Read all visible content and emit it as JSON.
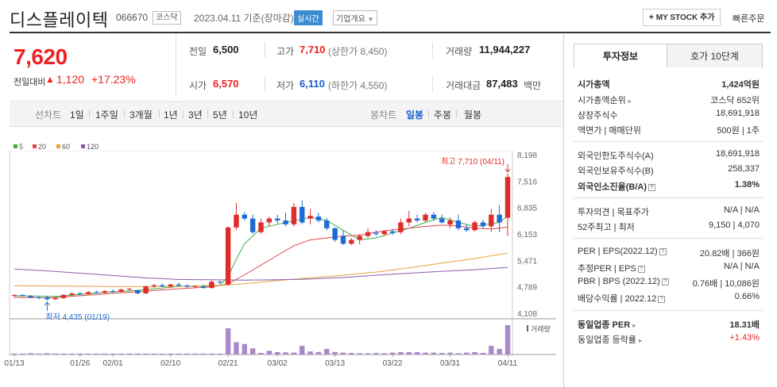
{
  "header": {
    "name": "디스플레이텍",
    "code": "066670",
    "market": "코스닥",
    "date": "2023.04.11  기준(장마감)",
    "realtime": "실시간",
    "company_info": "기업개요",
    "mystock_button": "MY STOCK 추가",
    "quick_order": "빠른주문"
  },
  "price": {
    "current": "7,620",
    "change_label": "전일대비",
    "change_value": "1,120",
    "change_pct": "+17.23%"
  },
  "stats": {
    "prev_label": "전일",
    "prev_value": "6,500",
    "high_label": "고가",
    "high_value": "7,710",
    "upper_limit": "(상한가 8,450)",
    "volume_label": "거래량",
    "volume_value": "11,944,227",
    "open_label": "시가",
    "open_value": "6,570",
    "low_label": "저가",
    "low_value": "6,110",
    "lower_limit": "(하한가 4,550)",
    "amount_label": "거래대금",
    "amount_value": "87,483",
    "amount_unit": "백만"
  },
  "period_bar": {
    "line_label": "선차트",
    "periods": [
      "1일",
      "1주일",
      "3개월",
      "1년",
      "3년",
      "5년",
      "10년"
    ],
    "candle_label": "봉차트",
    "candle_periods": [
      "일봉",
      "주봉",
      "월봉"
    ],
    "active_candle": "일봉"
  },
  "legend": [
    {
      "name": "5",
      "color": "#3cb043"
    },
    {
      "name": "20",
      "color": "#e04848"
    },
    {
      "name": "60",
      "color": "#e8a23c"
    },
    {
      "name": "120",
      "color": "#8a5bb0"
    }
  ],
  "chart_data": {
    "type": "candlestick",
    "y_ticks": [
      "8,198",
      "7,516",
      "6,835",
      "6,153",
      "5,471",
      "4,789",
      "4,108"
    ],
    "ylim": [
      4108,
      8198
    ],
    "x_ticks": [
      {
        "label": "01/13",
        "i": 0
      },
      {
        "label": "01/26",
        "i": 8
      },
      {
        "label": "02/01",
        "i": 12
      },
      {
        "label": "02/10",
        "i": 19
      },
      {
        "label": "02/21",
        "i": 26
      },
      {
        "label": "03/02",
        "i": 32
      },
      {
        "label": "03/13",
        "i": 39
      },
      {
        "label": "03/22",
        "i": 46
      },
      {
        "label": "03/31",
        "i": 53
      },
      {
        "label": "04/11",
        "i": 60
      }
    ],
    "max_annotation": "최고 7,710 (04/11)",
    "min_annotation": "최저 4,435 (01/19)",
    "volume_label": "거래량",
    "candles": [
      [
        4560,
        4600,
        4520,
        4580
      ],
      [
        4580,
        4600,
        4540,
        4560
      ],
      [
        4560,
        4580,
        4500,
        4520
      ],
      [
        4520,
        4560,
        4470,
        4500
      ],
      [
        4520,
        4560,
        4435,
        4470
      ],
      [
        4470,
        4520,
        4450,
        4500
      ],
      [
        4500,
        4600,
        4480,
        4580
      ],
      [
        4580,
        4640,
        4560,
        4620
      ],
      [
        4620,
        4660,
        4580,
        4600
      ],
      [
        4600,
        4680,
        4590,
        4650
      ],
      [
        4650,
        4690,
        4620,
        4640
      ],
      [
        4640,
        4700,
        4610,
        4680
      ],
      [
        4680,
        4720,
        4640,
        4660
      ],
      [
        4660,
        4740,
        4650,
        4720
      ],
      [
        4720,
        4760,
        4690,
        4740
      ],
      [
        4700,
        4720,
        4600,
        4620
      ],
      [
        4620,
        4820,
        4600,
        4800
      ],
      [
        4800,
        4860,
        4760,
        4830
      ],
      [
        4830,
        4880,
        4780,
        4800
      ],
      [
        4800,
        4860,
        4770,
        4850
      ],
      [
        4850,
        4900,
        4800,
        4820
      ],
      [
        4820,
        4860,
        4770,
        4790
      ],
      [
        4790,
        4830,
        4750,
        4810
      ],
      [
        4800,
        4840,
        4740,
        4760
      ],
      [
        4760,
        4960,
        4740,
        4920
      ],
      [
        4920,
        4950,
        4860,
        4900
      ],
      [
        4850,
        6350,
        4820,
        6320
      ],
      [
        6320,
        6950,
        6250,
        6650
      ],
      [
        6650,
        6720,
        6500,
        6550
      ],
      [
        6550,
        6650,
        6150,
        6200
      ],
      [
        6200,
        6550,
        6150,
        6450
      ],
      [
        6450,
        6600,
        6350,
        6550
      ],
      [
        6550,
        6650,
        6420,
        6500
      ],
      [
        6500,
        6700,
        6350,
        6400
      ],
      [
        6400,
        6950,
        6350,
        6850
      ],
      [
        6850,
        7020,
        6400,
        6450
      ],
      [
        6550,
        6800,
        6400,
        6620
      ],
      [
        6600,
        6700,
        6450,
        6500
      ],
      [
        6500,
        6560,
        6250,
        6300
      ],
      [
        6300,
        6320,
        5950,
        6000
      ],
      [
        6100,
        6250,
        5870,
        5900
      ],
      [
        5900,
        6050,
        5860,
        6000
      ],
      [
        6000,
        6150,
        5880,
        6100
      ],
      [
        6100,
        6300,
        6050,
        6200
      ],
      [
        6180,
        6250,
        6100,
        6150
      ],
      [
        6150,
        6260,
        6100,
        6220
      ],
      [
        6220,
        6280,
        6130,
        6180
      ],
      [
        6200,
        6550,
        6150,
        6450
      ],
      [
        6450,
        6750,
        6350,
        6550
      ],
      [
        6550,
        6650,
        6450,
        6500
      ],
      [
        6500,
        6700,
        6450,
        6650
      ],
      [
        6650,
        6720,
        6500,
        6550
      ],
      [
        6550,
        6650,
        6420,
        6450
      ],
      [
        6400,
        6580,
        6300,
        6500
      ],
      [
        6500,
        6650,
        6250,
        6300
      ],
      [
        6300,
        6400,
        6200,
        6250
      ],
      [
        6250,
        6500,
        6220,
        6450
      ],
      [
        6450,
        6520,
        6300,
        6350
      ],
      [
        6350,
        6800,
        6200,
        6650
      ],
      [
        6650,
        6900,
        6200,
        6450
      ],
      [
        6570,
        7710,
        6110,
        7620
      ]
    ],
    "ma": [
      {
        "name": "5",
        "color": "#3cb043",
        "points": [
          [
            0,
            4560
          ],
          [
            5,
            4540
          ],
          [
            10,
            4630
          ],
          [
            15,
            4700
          ],
          [
            20,
            4800
          ],
          [
            25,
            4830
          ],
          [
            26,
            5050
          ],
          [
            27,
            5500
          ],
          [
            28,
            5900
          ],
          [
            30,
            6300
          ],
          [
            33,
            6450
          ],
          [
            36,
            6580
          ],
          [
            38,
            6500
          ],
          [
            40,
            6250
          ],
          [
            42,
            6000
          ],
          [
            44,
            6050
          ],
          [
            46,
            6180
          ],
          [
            48,
            6300
          ],
          [
            50,
            6450
          ],
          [
            52,
            6580
          ],
          [
            54,
            6450
          ],
          [
            56,
            6350
          ],
          [
            58,
            6420
          ],
          [
            59,
            6450
          ],
          [
            60,
            6620
          ]
        ]
      },
      {
        "name": "20",
        "color": "#e04848",
        "points": [
          [
            0,
            4520
          ],
          [
            4,
            4500
          ],
          [
            8,
            4560
          ],
          [
            12,
            4620
          ],
          [
            16,
            4680
          ],
          [
            20,
            4740
          ],
          [
            24,
            4790
          ],
          [
            26,
            4860
          ],
          [
            28,
            5100
          ],
          [
            30,
            5350
          ],
          [
            32,
            5600
          ],
          [
            34,
            5850
          ],
          [
            36,
            6000
          ],
          [
            38,
            6050
          ],
          [
            40,
            6100
          ],
          [
            42,
            6120
          ],
          [
            44,
            6200
          ],
          [
            46,
            6260
          ],
          [
            48,
            6300
          ],
          [
            50,
            6350
          ],
          [
            52,
            6380
          ],
          [
            54,
            6360
          ],
          [
            56,
            6300
          ],
          [
            58,
            6280
          ],
          [
            60,
            6330
          ]
        ]
      },
      {
        "name": "60",
        "color": "#e8a23c",
        "points": [
          [
            0,
            4820
          ],
          [
            6,
            4810
          ],
          [
            12,
            4800
          ],
          [
            18,
            4800
          ],
          [
            24,
            4810
          ],
          [
            28,
            4870
          ],
          [
            32,
            4950
          ],
          [
            36,
            5020
          ],
          [
            40,
            5090
          ],
          [
            44,
            5170
          ],
          [
            48,
            5280
          ],
          [
            52,
            5400
          ],
          [
            56,
            5520
          ],
          [
            60,
            5660
          ]
        ]
      },
      {
        "name": "120",
        "color": "#8a5bb0",
        "points": [
          [
            0,
            5250
          ],
          [
            4,
            5200
          ],
          [
            8,
            5140
          ],
          [
            12,
            5080
          ],
          [
            16,
            5020
          ],
          [
            20,
            4980
          ],
          [
            24,
            4970
          ],
          [
            28,
            4960
          ],
          [
            32,
            4970
          ],
          [
            36,
            4990
          ],
          [
            40,
            5030
          ],
          [
            44,
            5090
          ],
          [
            48,
            5140
          ],
          [
            52,
            5190
          ],
          [
            56,
            5230
          ],
          [
            60,
            5290
          ]
        ]
      }
    ],
    "volumes": [
      3,
      3,
      4,
      3,
      4,
      3,
      3,
      3,
      3,
      3,
      3,
      3,
      3,
      3,
      3,
      3,
      3,
      3,
      3,
      3,
      3,
      3,
      3,
      3,
      3,
      3,
      85,
      40,
      34,
      20,
      5,
      12,
      8,
      7,
      6,
      28,
      10,
      8,
      18,
      8,
      6,
      5,
      4,
      4,
      5,
      4,
      6,
      8,
      8,
      8,
      6,
      6,
      5,
      6,
      4,
      6,
      8,
      5,
      28,
      18,
      95
    ]
  },
  "panel": {
    "tab_active": "투자정보",
    "tab_other": "호가 10단계",
    "rows": {
      "mcap_label": "시가총액",
      "mcap_value": "1,424억원",
      "mcap_rank_label": "시가총액순위",
      "mcap_rank_value": "코스닥 652위",
      "shares_label": "상장주식수",
      "shares_value": "18,691,918",
      "par_label": "액면가 | 매매단위",
      "par_value": "500원 | 1주",
      "foreign_limit_label": "외국인한도주식수(A)",
      "foreign_limit_value": "18,691,918",
      "foreign_hold_label": "외국인보유주식수(B)",
      "foreign_hold_value": "258,337",
      "foreign_ratio_label": "외국인소진율(B/A)",
      "foreign_ratio_value": "1.38%",
      "opinion_label": "투자의견 | 목표주가",
      "opinion_value": "N/A | N/A",
      "week52_label": "52주최고 | 최저",
      "week52_value": "9,150 | 4,070",
      "per_label": "PER | EPS(2022.12)",
      "per_value": "20.82배 | 366원",
      "est_per_label": "추정PER | EPS",
      "est_per_value": "N/A | N/A",
      "pbr_label": "PBR | BPS (2022.12)",
      "pbr_value": "0.76배 | 10,086원",
      "div_label": "배당수익률 | 2022.12",
      "div_value": "0.66%",
      "ind_per_label": "동일업종 PER",
      "ind_per_value": "18.31배",
      "ind_change_label": "동일업종 등락률",
      "ind_change_value": "+1.43%"
    }
  }
}
